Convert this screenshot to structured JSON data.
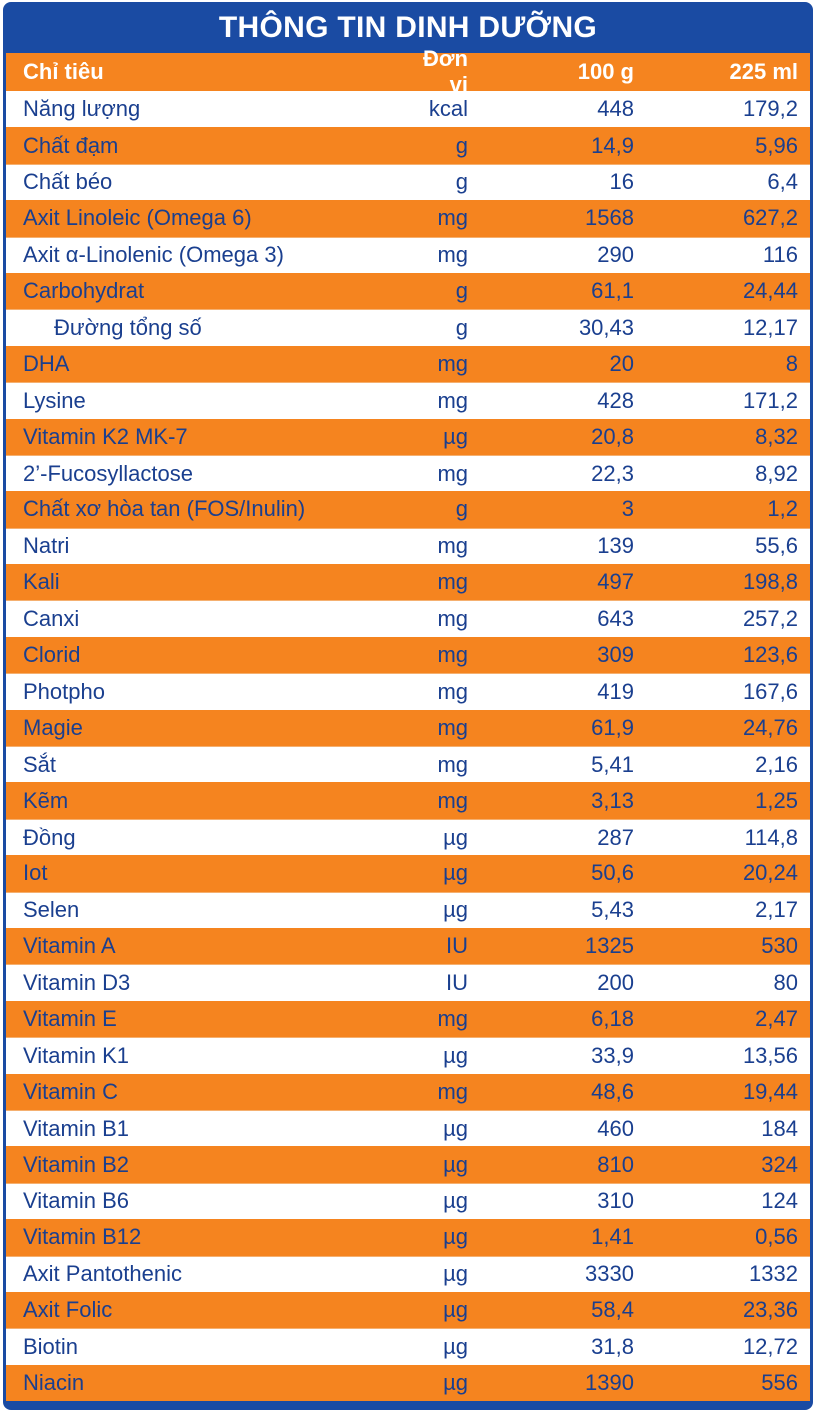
{
  "title": "THÔNG TIN DINH DƯỠNG",
  "header": {
    "name": "Chỉ tiêu",
    "unit": "Đơn vị",
    "per100": "100 g",
    "per225": "225 ml"
  },
  "rows": [
    {
      "name": "Năng lượng",
      "unit": "kcal",
      "per100": "448",
      "per225": "179,2"
    },
    {
      "name": "Chất đạm",
      "unit": "g",
      "per100": "14,9",
      "per225": "5,96"
    },
    {
      "name": "Chất béo",
      "unit": "g",
      "per100": "16",
      "per225": "6,4"
    },
    {
      "name": "Axit Linoleic (Omega 6)",
      "unit": "mg",
      "per100": "1568",
      "per225": "627,2"
    },
    {
      "name": "Axit α-Linolenic (Omega 3)",
      "unit": "mg",
      "per100": "290",
      "per225": "116"
    },
    {
      "name": "Carbohydrat",
      "unit": "g",
      "per100": "61,1",
      "per225": "24,44"
    },
    {
      "name": "Đường tổng số",
      "unit": "g",
      "per100": "30,43",
      "per225": "12,17"
    },
    {
      "name": "DHA",
      "unit": "mg",
      "per100": "20",
      "per225": "8"
    },
    {
      "name": "Lysine",
      "unit": "mg",
      "per100": "428",
      "per225": "171,2"
    },
    {
      "name": "Vitamin K2 MK-7",
      "unit": "µg",
      "per100": "20,8",
      "per225": "8,32"
    },
    {
      "name": "2’-Fucosyllactose",
      "unit": "mg",
      "per100": "22,3",
      "per225": "8,92"
    },
    {
      "name": "Chất xơ hòa tan (FOS/Inulin)",
      "unit": "g",
      "per100": "3",
      "per225": "1,2"
    },
    {
      "name": "Natri",
      "unit": "mg",
      "per100": "139",
      "per225": "55,6"
    },
    {
      "name": "Kali",
      "unit": "mg",
      "per100": "497",
      "per225": "198,8"
    },
    {
      "name": "Canxi",
      "unit": "mg",
      "per100": "643",
      "per225": "257,2"
    },
    {
      "name": "Clorid",
      "unit": "mg",
      "per100": "309",
      "per225": "123,6"
    },
    {
      "name": "Photpho",
      "unit": "mg",
      "per100": "419",
      "per225": "167,6"
    },
    {
      "name": "Magie",
      "unit": "mg",
      "per100": "61,9",
      "per225": "24,76"
    },
    {
      "name": "Sắt",
      "unit": "mg",
      "per100": "5,41",
      "per225": "2,16"
    },
    {
      "name": "Kẽm",
      "unit": "mg",
      "per100": "3,13",
      "per225": "1,25"
    },
    {
      "name": "Đồng",
      "unit": "µg",
      "per100": "287",
      "per225": "114,8"
    },
    {
      "name": "Iot",
      "unit": "µg",
      "per100": "50,6",
      "per225": "20,24"
    },
    {
      "name": "Selen",
      "unit": "µg",
      "per100": "5,43",
      "per225": "2,17"
    },
    {
      "name": "Vitamin A",
      "unit": "IU",
      "per100": "1325",
      "per225": "530"
    },
    {
      "name": "Vitamin D3",
      "unit": "IU",
      "per100": "200",
      "per225": "80"
    },
    {
      "name": "Vitamin E",
      "unit": "mg",
      "per100": "6,18",
      "per225": "2,47"
    },
    {
      "name": "Vitamin K1",
      "unit": "µg",
      "per100": "33,9",
      "per225": "13,56"
    },
    {
      "name": "Vitamin C",
      "unit": "mg",
      "per100": "48,6",
      "per225": "19,44"
    },
    {
      "name": "Vitamin B1",
      "unit": "µg",
      "per100": "460",
      "per225": "184"
    },
    {
      "name": "Vitamin B2",
      "unit": "µg",
      "per100": "810",
      "per225": "324"
    },
    {
      "name": "Vitamin B6",
      "unit": "µg",
      "per100": "310",
      "per225": "124"
    },
    {
      "name": "Vitamin B12",
      "unit": "µg",
      "per100": "1,41",
      "per225": "0,56"
    },
    {
      "name": "Axit Pantothenic",
      "unit": "µg",
      "per100": "3330",
      "per225": "1332"
    },
    {
      "name": "Axit Folic",
      "unit": "µg",
      "per100": "58,4",
      "per225": "23,36"
    },
    {
      "name": "Biotin",
      "unit": "µg",
      "per100": "31,8",
      "per225": "12,72"
    },
    {
      "name": "Niacin",
      "unit": "µg",
      "per100": "1390",
      "per225": "556"
    }
  ],
  "colors": {
    "title_bg": "#1a4ba3",
    "stripe": "#f5841f",
    "text": "#1a3f8f"
  }
}
